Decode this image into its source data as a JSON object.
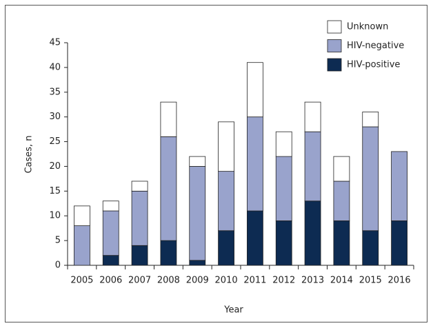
{
  "chart_data": {
    "type": "stacked_bar",
    "x_label": "Year",
    "y_label": "Cases, n",
    "categories": [
      "2005",
      "2006",
      "2007",
      "2008",
      "2009",
      "2010",
      "2011",
      "2012",
      "2013",
      "2014",
      "2015",
      "2016"
    ],
    "series": [
      {
        "name": "HIV-positive",
        "color": "#0d2b52",
        "values": [
          0,
          2,
          4,
          5,
          1,
          7,
          11,
          9,
          13,
          9,
          7,
          9
        ]
      },
      {
        "name": "HIV-negative",
        "color": "#99a3cc",
        "values": [
          8,
          9,
          11,
          21,
          19,
          12,
          19,
          13,
          14,
          8,
          21,
          14
        ]
      },
      {
        "name": "Unknown",
        "color": "#ffffff",
        "values": [
          4,
          2,
          2,
          7,
          2,
          10,
          11,
          5,
          6,
          5,
          3,
          0
        ]
      }
    ],
    "ylim": [
      0,
      45
    ],
    "yticks": [
      0,
      5,
      10,
      15,
      20,
      25,
      30,
      35,
      40,
      45
    ],
    "legend": "top-right"
  }
}
